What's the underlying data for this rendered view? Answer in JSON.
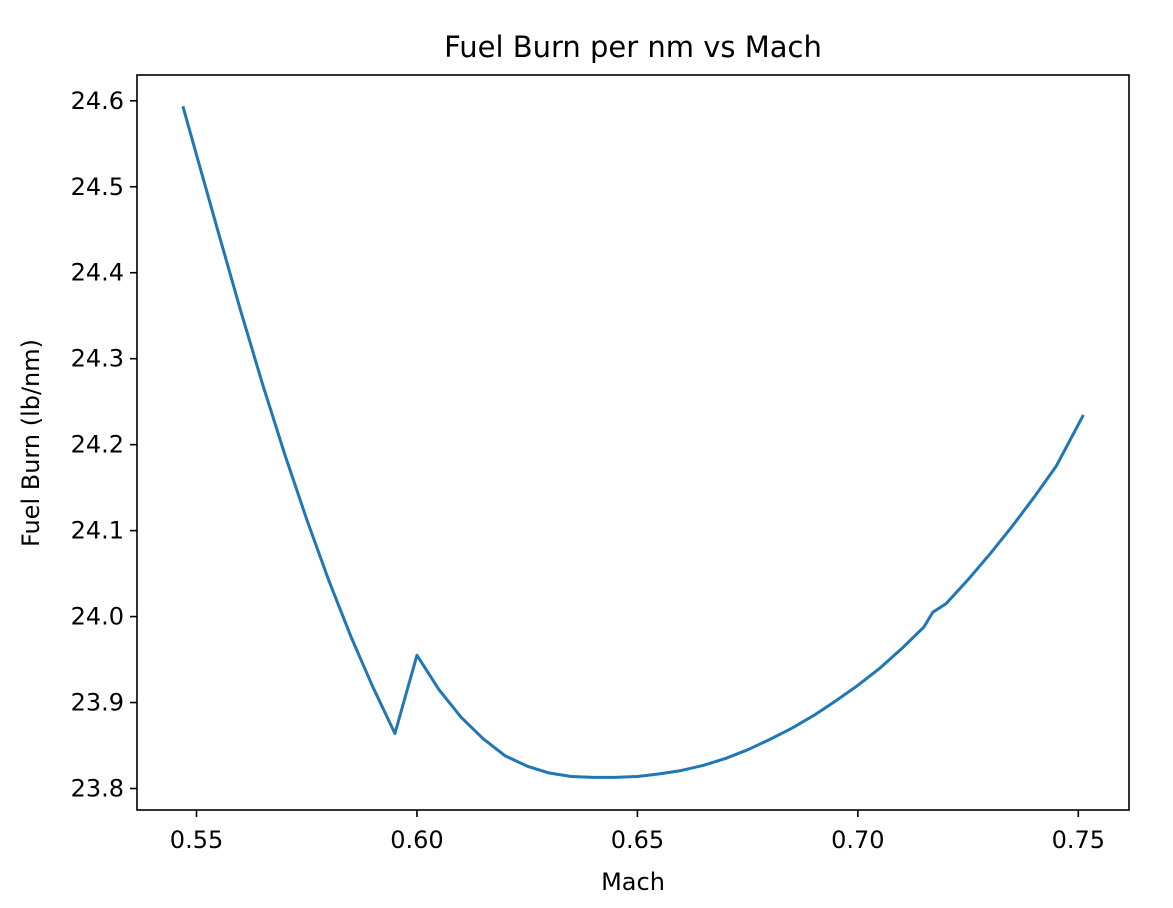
{
  "chart_data": {
    "type": "line",
    "title": "Fuel Burn per nm vs Mach",
    "xlabel": "Mach",
    "ylabel": "Fuel Burn (lb/nm)",
    "xlim": [
      0.5365,
      0.7615
    ],
    "ylim": [
      23.775,
      24.63
    ],
    "xticks": [
      0.55,
      0.6,
      0.65,
      0.7,
      0.75
    ],
    "xtick_labels": [
      "0.55",
      "0.60",
      "0.65",
      "0.70",
      "0.75"
    ],
    "yticks": [
      23.8,
      23.9,
      24.0,
      24.1,
      24.2,
      24.3,
      24.4,
      24.5,
      24.6
    ],
    "ytick_labels": [
      "23.8",
      "23.9",
      "24.0",
      "24.1",
      "24.2",
      "24.3",
      "24.4",
      "24.5",
      "24.6"
    ],
    "grid": false,
    "legend": "none",
    "series": [
      {
        "color": "#1f77b4",
        "x": [
          0.547,
          0.55,
          0.555,
          0.56,
          0.565,
          0.57,
          0.575,
          0.58,
          0.585,
          0.59,
          0.595,
          0.6,
          0.605,
          0.61,
          0.615,
          0.62,
          0.625,
          0.63,
          0.635,
          0.64,
          0.645,
          0.65,
          0.655,
          0.66,
          0.665,
          0.67,
          0.675,
          0.68,
          0.685,
          0.69,
          0.695,
          0.7,
          0.705,
          0.71,
          0.715,
          0.717,
          0.72,
          0.725,
          0.73,
          0.735,
          0.74,
          0.745,
          0.751
        ],
        "y": [
          24.592,
          24.537,
          24.446,
          24.356,
          24.27,
          24.189,
          24.113,
          24.042,
          23.977,
          23.918,
          23.864,
          23.955,
          23.915,
          23.883,
          23.858,
          23.838,
          23.826,
          23.818,
          23.814,
          23.813,
          23.813,
          23.814,
          23.817,
          23.821,
          23.827,
          23.835,
          23.845,
          23.857,
          23.87,
          23.885,
          23.902,
          23.92,
          23.94,
          23.963,
          23.988,
          24.005,
          24.015,
          24.043,
          24.073,
          24.105,
          24.139,
          24.175,
          24.233
        ]
      }
    ]
  }
}
